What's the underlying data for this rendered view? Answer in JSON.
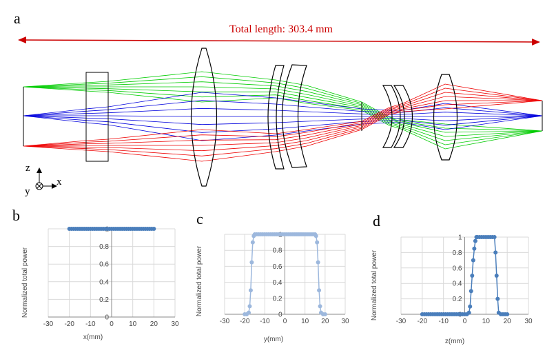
{
  "panels": {
    "a": "a",
    "b": "b",
    "c": "c",
    "d": "d"
  },
  "top_diagram": {
    "total_length_label": "Total length:  303.4 mm",
    "axes": {
      "z": "z",
      "x": "x",
      "y": "y"
    },
    "colors": {
      "green": "#00cc00",
      "blue": "#0000dd",
      "red": "#ee0000",
      "arrow": "#cc0000",
      "title": "#cc0000"
    }
  },
  "chart_data": [
    {
      "type": "scatter",
      "panel": "b",
      "xlabel": "x(mm)",
      "ylabel": "Normalized total power",
      "xlim": [
        -30,
        30
      ],
      "ylim": [
        0,
        1
      ],
      "xticks": [
        "-30",
        "-20",
        "-10",
        "0",
        "10",
        "20",
        "30"
      ],
      "yticks": [
        "0",
        "0.2",
        "0.4",
        "0.6",
        "0.8",
        "1"
      ],
      "color": "#4a7ebb",
      "x": [
        -20,
        -19,
        -18,
        -17,
        -16,
        -15,
        -14,
        -13,
        -12,
        -11,
        -10,
        -9,
        -8,
        -7,
        -6,
        -5,
        -4,
        -3,
        -2,
        -1,
        0,
        1,
        2,
        3,
        4,
        5,
        6,
        7,
        8,
        9,
        10,
        11,
        12,
        13,
        14,
        15,
        16,
        17,
        18,
        19,
        20
      ],
      "y": [
        1,
        1,
        1,
        1,
        1,
        1,
        1,
        1,
        1,
        1,
        1,
        1,
        1,
        1,
        1,
        1,
        1,
        1,
        1,
        1,
        1,
        1,
        1,
        1,
        1,
        1,
        1,
        1,
        1,
        1,
        1,
        1,
        1,
        1,
        1,
        1,
        1,
        1,
        1,
        1,
        1
      ]
    },
    {
      "type": "line",
      "panel": "c",
      "xlabel": "y(mm)",
      "ylabel": "Normalized total power",
      "xlim": [
        -30,
        30
      ],
      "ylim": [
        0,
        1
      ],
      "xticks": [
        "-30",
        "-20",
        "-10",
        "0",
        "10",
        "20",
        "30"
      ],
      "yticks": [
        "0",
        "0.2",
        "0.4",
        "0.6",
        "0.8",
        "1"
      ],
      "color": "#9db8dd",
      "x": [
        -20,
        -19,
        -18,
        -17.5,
        -17,
        -16.5,
        -16,
        -15.5,
        -15,
        -14,
        -13,
        -12,
        -11,
        -10,
        -9,
        -8,
        -7,
        -6,
        -5,
        -4,
        -3,
        -2,
        -1,
        0,
        1,
        2,
        3,
        4,
        5,
        6,
        7,
        8,
        9,
        10,
        11,
        12,
        13,
        14,
        15,
        15.5,
        16,
        16.5,
        17,
        17.5,
        18,
        19,
        20
      ],
      "y": [
        0,
        0,
        0.02,
        0.1,
        0.3,
        0.65,
        0.9,
        0.98,
        1,
        1,
        1,
        1,
        1,
        1,
        1,
        1,
        1,
        1,
        1,
        1,
        1,
        1,
        1,
        1,
        1,
        1,
        1,
        1,
        1,
        1,
        1,
        1,
        1,
        1,
        1,
        1,
        1,
        1,
        1,
        0.98,
        0.9,
        0.65,
        0.3,
        0.1,
        0.02,
        0,
        0
      ]
    },
    {
      "type": "line",
      "panel": "d",
      "xlabel": "z(mm)",
      "ylabel": "Normalized total power",
      "xlim": [
        -30,
        30
      ],
      "ylim": [
        0,
        1
      ],
      "xticks": [
        "-30",
        "-20",
        "-10",
        "0",
        "10",
        "20",
        "30"
      ],
      "yticks": [
        "0",
        "0.2",
        "0.4",
        "0.6",
        "0.8",
        "1"
      ],
      "color": "#4a7ebb",
      "x": [
        -20,
        -19,
        -18,
        -17,
        -16,
        -15,
        -14,
        -13,
        -12,
        -11,
        -10,
        -9,
        -8,
        -7,
        -6,
        -5,
        -4,
        -3,
        -2,
        -1,
        0,
        1,
        2,
        2.5,
        3,
        3.5,
        4,
        4.5,
        5,
        5.5,
        6,
        7,
        8,
        9,
        10,
        11,
        12,
        13,
        14,
        14.5,
        15,
        15.5,
        16,
        17,
        18,
        19,
        20
      ],
      "y": [
        0,
        0,
        0,
        0,
        0,
        0,
        0,
        0,
        0,
        0,
        0,
        0,
        0,
        0,
        0,
        0,
        0,
        0,
        0,
        0,
        0,
        0,
        0.02,
        0.1,
        0.3,
        0.5,
        0.7,
        0.85,
        0.95,
        1,
        1,
        1,
        1,
        1,
        1,
        1,
        1,
        1,
        1,
        0.8,
        0.5,
        0.2,
        0.02,
        0,
        0,
        0,
        0
      ]
    }
  ]
}
